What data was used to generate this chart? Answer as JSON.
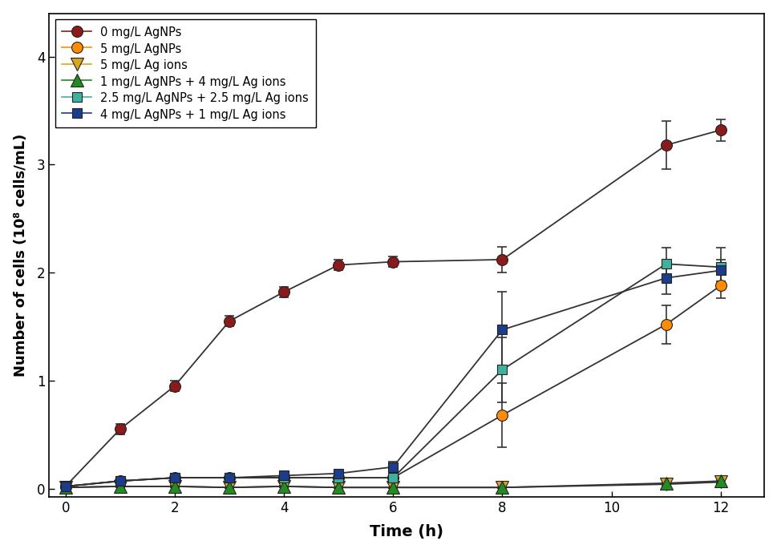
{
  "title": "",
  "xlabel": "Time (h)",
  "ylabel": "Number of cells (10⁸ cells/mL)",
  "xlim": [
    -0.3,
    12.8
  ],
  "ylim": [
    -0.08,
    4.4
  ],
  "xticks": [
    0,
    2,
    4,
    6,
    8,
    10,
    12
  ],
  "yticks": [
    0,
    1,
    2,
    3,
    4
  ],
  "series": [
    {
      "label": "0 mg/L AgNPs",
      "color": "#8B1A1A",
      "marker": "o",
      "marker_size": 10,
      "x": [
        0,
        1,
        2,
        3,
        4,
        5,
        6,
        8,
        11,
        12
      ],
      "y": [
        0.02,
        0.55,
        0.95,
        1.55,
        1.82,
        2.07,
        2.1,
        2.12,
        3.18,
        3.32
      ],
      "yerr": [
        0.01,
        0.05,
        0.05,
        0.05,
        0.05,
        0.05,
        0.05,
        0.12,
        0.22,
        0.1
      ]
    },
    {
      "label": "5 mg/L AgNPs",
      "color": "#FF8C00",
      "marker": "o",
      "marker_size": 10,
      "x": [
        0,
        1,
        2,
        3,
        4,
        5,
        6,
        8,
        11,
        12
      ],
      "y": [
        0.02,
        0.07,
        0.1,
        0.1,
        0.1,
        0.1,
        0.1,
        0.68,
        1.52,
        1.88
      ],
      "yerr": [
        0.01,
        0.02,
        0.02,
        0.02,
        0.02,
        0.02,
        0.02,
        0.3,
        0.18,
        0.12
      ]
    },
    {
      "label": "5 mg/L Ag ions",
      "color": "#DAA520",
      "marker": "v",
      "marker_size": 11,
      "x": [
        0,
        1,
        2,
        3,
        4,
        5,
        6,
        8,
        11,
        12
      ],
      "y": [
        0.01,
        0.02,
        0.02,
        0.01,
        0.02,
        0.01,
        0.01,
        0.01,
        0.04,
        0.06
      ],
      "yerr": [
        0.005,
        0.005,
        0.005,
        0.005,
        0.01,
        0.005,
        0.005,
        0.005,
        0.01,
        0.02
      ]
    },
    {
      "label": "1 mg/L AgNPs + 4 mg/L Ag ions",
      "color": "#228B22",
      "marker": "^",
      "marker_size": 11,
      "x": [
        0,
        1,
        2,
        3,
        4,
        5,
        6,
        8,
        11,
        12
      ],
      "y": [
        0.01,
        0.02,
        0.02,
        0.01,
        0.02,
        0.01,
        0.01,
        0.01,
        0.05,
        0.07
      ],
      "yerr": [
        0.005,
        0.005,
        0.005,
        0.005,
        0.01,
        0.005,
        0.005,
        0.005,
        0.01,
        0.02
      ]
    },
    {
      "label": "2.5 mg/L AgNPs + 2.5 mg/L Ag ions",
      "color": "#40B0A0",
      "marker": "s",
      "marker_size": 9,
      "x": [
        0,
        1,
        2,
        3,
        4,
        5,
        6,
        8,
        11,
        12
      ],
      "y": [
        0.02,
        0.07,
        0.1,
        0.1,
        0.1,
        0.1,
        0.1,
        1.1,
        2.08,
        2.05
      ],
      "yerr": [
        0.01,
        0.02,
        0.03,
        0.02,
        0.02,
        0.02,
        0.02,
        0.3,
        0.15,
        0.18
      ]
    },
    {
      "label": "4 mg/L AgNPs + 1 mg/L Ag ions",
      "color": "#1C3D8C",
      "marker": "s",
      "marker_size": 9,
      "x": [
        0,
        1,
        2,
        3,
        4,
        5,
        6,
        8,
        11,
        12
      ],
      "y": [
        0.02,
        0.07,
        0.1,
        0.1,
        0.12,
        0.14,
        0.2,
        1.47,
        1.95,
        2.02
      ],
      "yerr": [
        0.01,
        0.02,
        0.03,
        0.02,
        0.02,
        0.02,
        0.05,
        0.35,
        0.15,
        0.1
      ]
    }
  ],
  "legend_loc": "upper left",
  "background_color": "#ffffff",
  "line_width": 1.3,
  "line_color": "#333333",
  "capsize": 4,
  "elinewidth": 1.2
}
